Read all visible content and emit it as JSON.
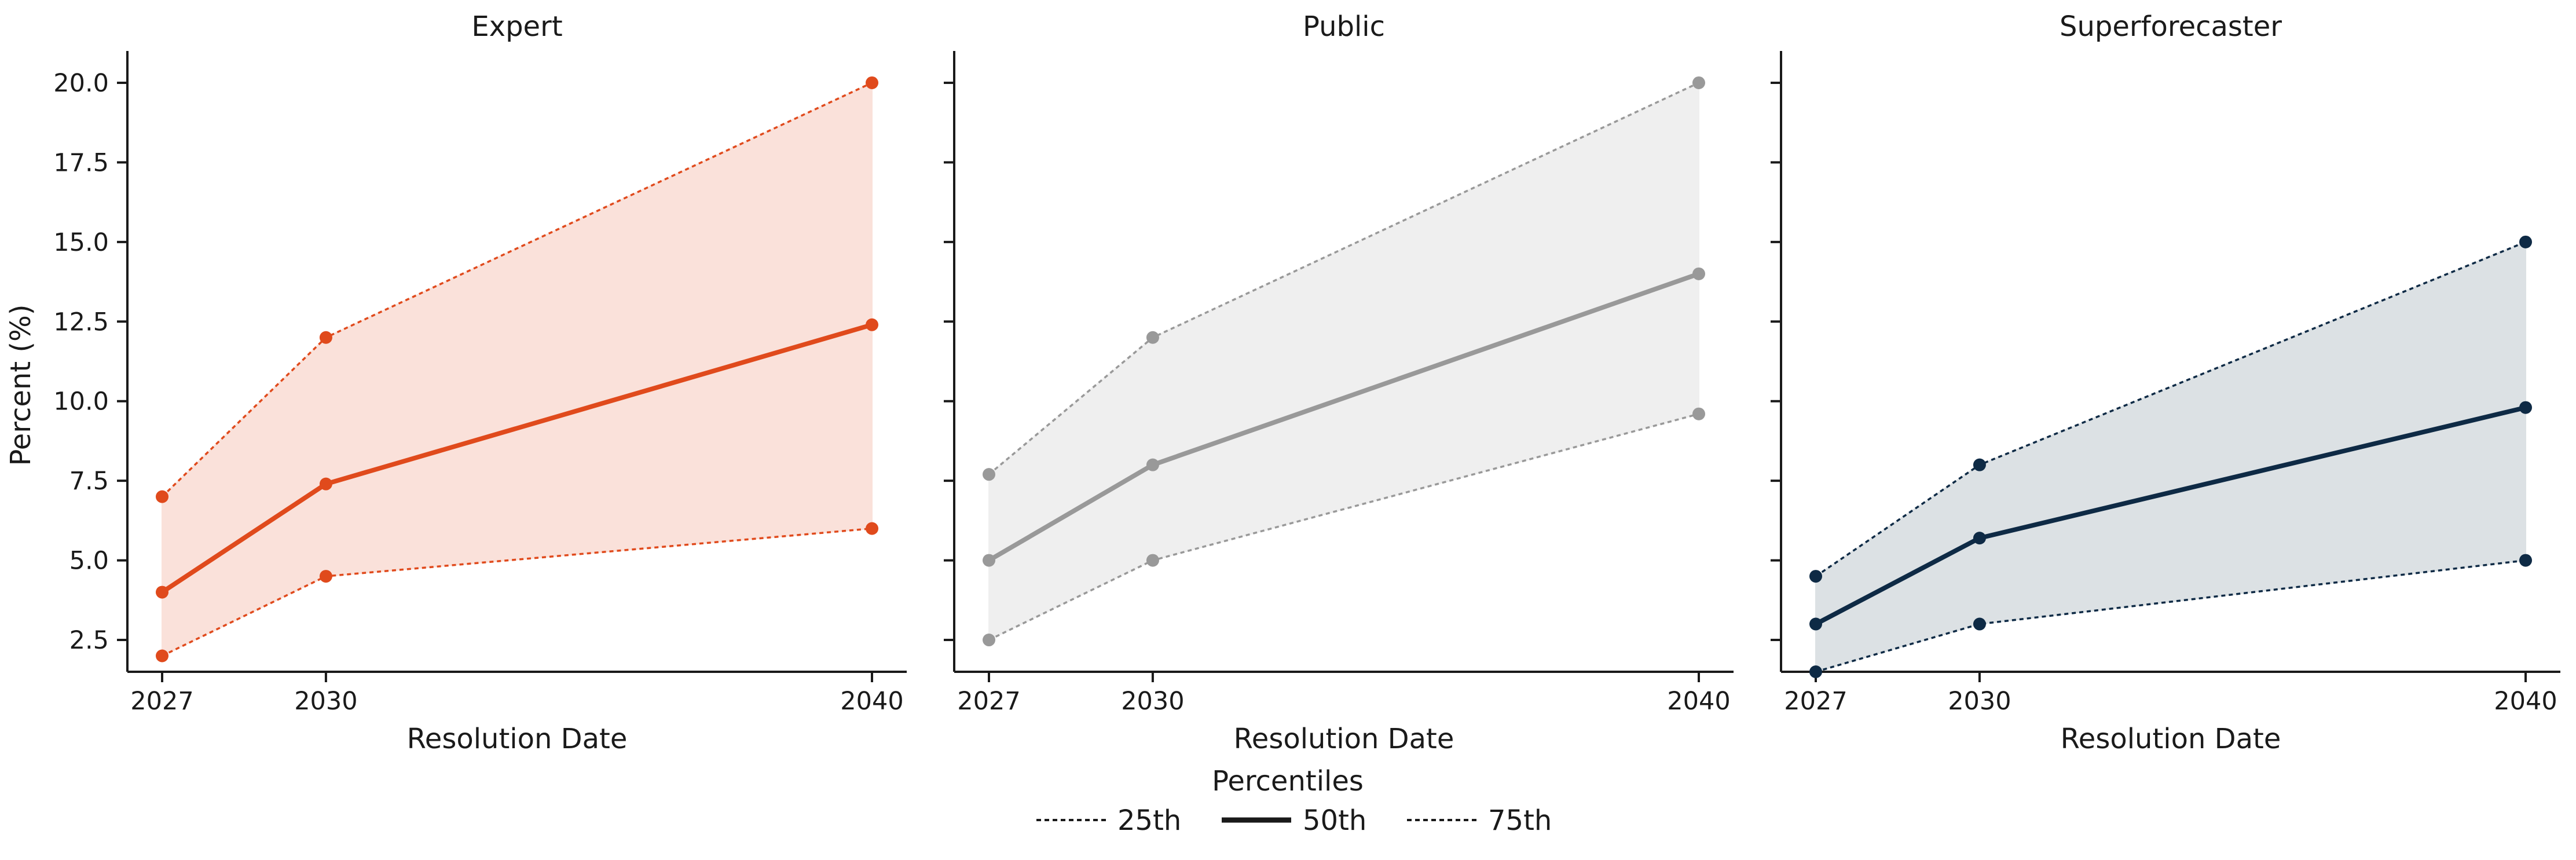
{
  "chart_data": {
    "type": "line",
    "ylabel": "Percent (%)",
    "xlabel": "Resolution Date",
    "x": [
      2027,
      2030,
      2040
    ],
    "x_ticks": [
      "2027",
      "2030",
      "2040"
    ],
    "ylim": [
      1.5,
      21.0
    ],
    "y_ticks": [
      "2.5",
      "5.0",
      "7.5",
      "10.0",
      "12.5",
      "15.0",
      "17.5",
      "20.0"
    ],
    "grid": false,
    "legend": {
      "title": "Percentiles",
      "position": "bottom-center",
      "entries": [
        {
          "label": "25th",
          "style": "dotted"
        },
        {
          "label": "50th",
          "style": "solid"
        },
        {
          "label": "75th",
          "style": "dotted"
        }
      ]
    },
    "panels": [
      {
        "title": "Expert",
        "color": "#e04a1c",
        "fill": "#fae1da",
        "series": [
          {
            "percentile": "25th",
            "values": [
              2.0,
              4.5,
              6.0
            ]
          },
          {
            "percentile": "50th",
            "values": [
              4.0,
              7.4,
              12.4
            ]
          },
          {
            "percentile": "75th",
            "values": [
              7.0,
              12.0,
              20.0
            ]
          }
        ]
      },
      {
        "title": "Public",
        "color": "#999999",
        "fill": "#efefef",
        "series": [
          {
            "percentile": "25th",
            "values": [
              2.5,
              5.0,
              9.6
            ]
          },
          {
            "percentile": "50th",
            "values": [
              5.0,
              8.0,
              14.0
            ]
          },
          {
            "percentile": "75th",
            "values": [
              7.7,
              12.0,
              20.0
            ]
          }
        ]
      },
      {
        "title": "Superforecaster",
        "color": "#0e2a45",
        "fill": "#dce1e4",
        "series": [
          {
            "percentile": "25th",
            "values": [
              1.5,
              3.0,
              5.0
            ]
          },
          {
            "percentile": "50th",
            "values": [
              3.0,
              5.7,
              9.8
            ]
          },
          {
            "percentile": "75th",
            "values": [
              4.5,
              8.0,
              15.0
            ]
          }
        ]
      }
    ]
  }
}
